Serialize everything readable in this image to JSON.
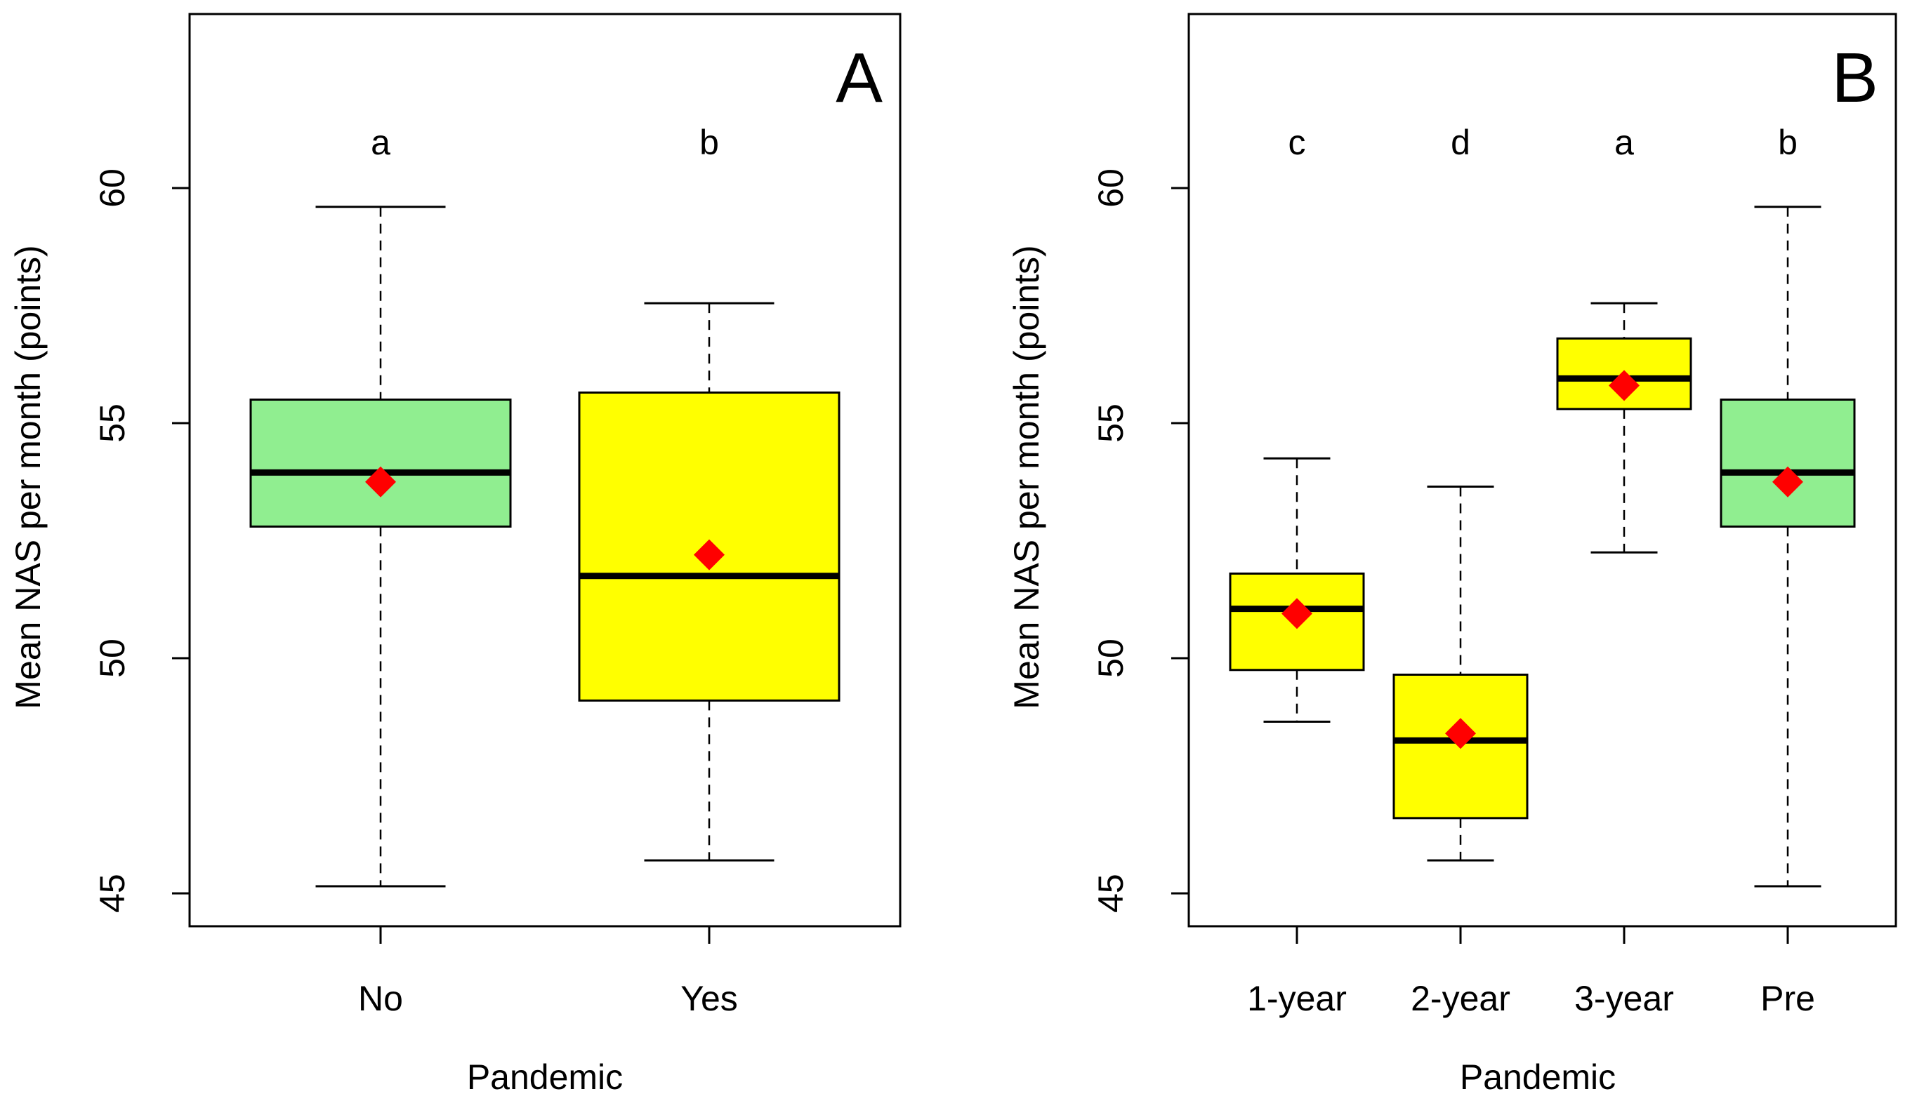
{
  "chart_data": [
    {
      "type": "boxplot",
      "panel_label": "A",
      "xlabel": "Pandemic",
      "ylabel": "Mean NAS per month (points)",
      "ylim": [
        44.3,
        63.7
      ],
      "yticks": [
        45,
        50,
        55,
        60
      ],
      "grid": false,
      "categories": [
        "No",
        "Yes"
      ],
      "groups": [
        {
          "category": "No",
          "whisker_low": 45.15,
          "q1": 52.8,
          "median": 53.95,
          "q3": 55.5,
          "whisker_high": 59.6,
          "mean": 53.75,
          "letter": "a",
          "fill": "#90EE90"
        },
        {
          "category": "Yes",
          "whisker_low": 45.7,
          "q1": 49.1,
          "median": 51.75,
          "q3": 55.65,
          "whisker_high": 57.55,
          "mean": 52.2,
          "letter": "b",
          "fill": "#FFFF00"
        }
      ]
    },
    {
      "type": "boxplot",
      "panel_label": "B",
      "xlabel": "Pandemic",
      "ylabel": "Mean NAS per month (points)",
      "ylim": [
        44.3,
        63.7
      ],
      "yticks": [
        45,
        50,
        55,
        60
      ],
      "grid": false,
      "categories": [
        "1-year",
        "2-year",
        "3-year",
        "Pre"
      ],
      "groups": [
        {
          "category": "1-year",
          "whisker_low": 48.65,
          "q1": 49.75,
          "median": 51.05,
          "q3": 51.8,
          "whisker_high": 54.25,
          "mean": 50.95,
          "letter": "c",
          "fill": "#FFFF00"
        },
        {
          "category": "2-year",
          "whisker_low": 45.7,
          "q1": 46.6,
          "median": 48.25,
          "q3": 49.65,
          "whisker_high": 53.65,
          "mean": 48.4,
          "letter": "d",
          "fill": "#FFFF00"
        },
        {
          "category": "3-year",
          "whisker_low": 52.25,
          "q1": 55.3,
          "median": 55.95,
          "q3": 56.8,
          "whisker_high": 57.55,
          "mean": 55.8,
          "letter": "a",
          "fill": "#FFFF00"
        },
        {
          "category": "Pre",
          "whisker_low": 45.15,
          "q1": 52.8,
          "median": 53.95,
          "q3": 55.5,
          "whisker_high": 59.6,
          "mean": 53.75,
          "letter": "b",
          "fill": "#90EE90"
        }
      ]
    }
  ],
  "colors": {
    "mean_marker": "#FF0000",
    "median_line": "#000000",
    "frame": "#000000"
  }
}
